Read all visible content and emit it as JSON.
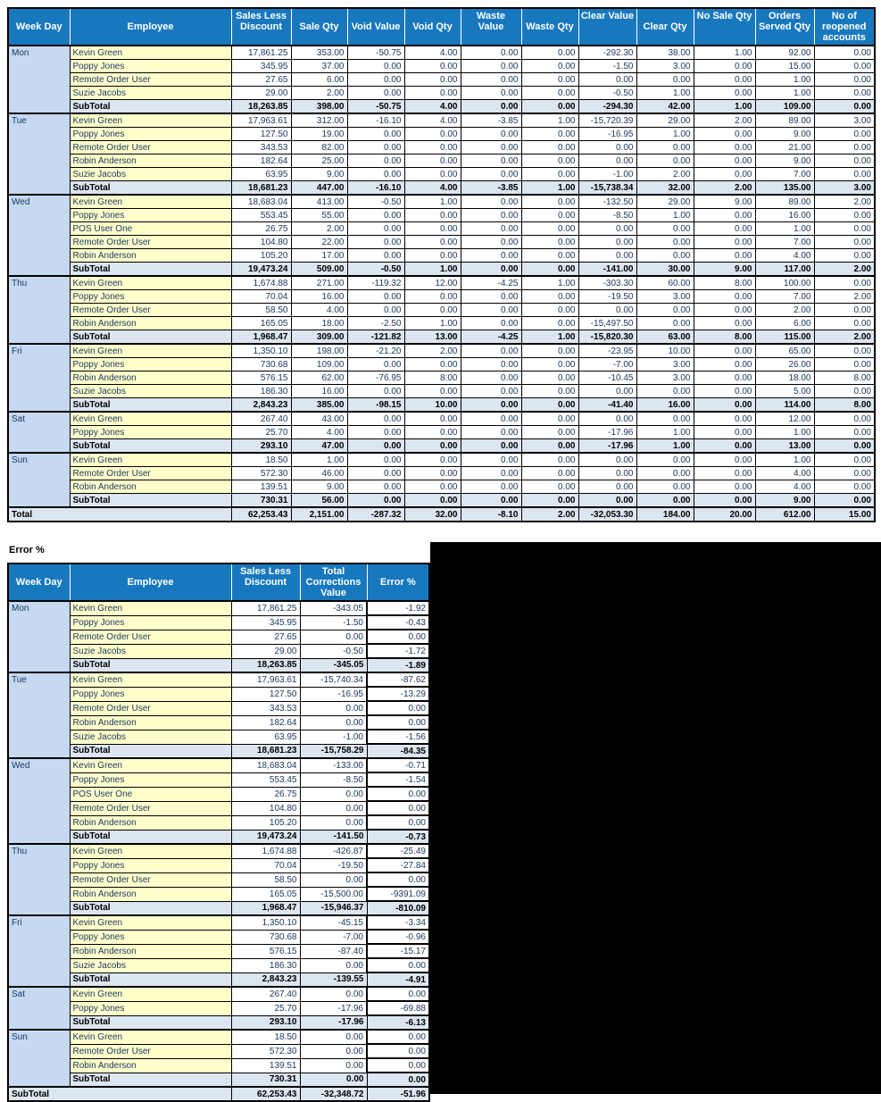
{
  "colors": {
    "header_bg": "#1878BE",
    "header_text": "#FFFFFF",
    "weekday_bg": "#C6D9F1",
    "employee_bg": "#FFFFCC",
    "subtotal_bg": "#DCE6F1",
    "data_text": "#17375D"
  },
  "report_table": {
    "columns": [
      "Week Day",
      "Employee",
      "Sales Less Discount",
      "Sale Qty",
      "Void Value",
      "Void Qty",
      "Waste Value",
      "Waste Qty",
      "Clear Value",
      "Clear Qty",
      "No Sale Qty",
      "Orders Served Qty",
      "No of reopened accounts"
    ],
    "groups": [
      {
        "day": "Mon",
        "rows": [
          [
            "Kevin Green",
            "17,861.25",
            "353.00",
            "-50.75",
            "4.00",
            "0.00",
            "0.00",
            "-292.30",
            "38.00",
            "1.00",
            "92.00",
            "0.00"
          ],
          [
            "Poppy Jones",
            "345.95",
            "37.00",
            "0.00",
            "0.00",
            "0.00",
            "0.00",
            "-1.50",
            "3.00",
            "0.00",
            "15.00",
            "0.00"
          ],
          [
            "Remote Order User",
            "27.65",
            "6.00",
            "0.00",
            "0.00",
            "0.00",
            "0.00",
            "0.00",
            "0.00",
            "0.00",
            "1.00",
            "0.00"
          ],
          [
            "Suzie Jacobs",
            "29.00",
            "2.00",
            "0.00",
            "0.00",
            "0.00",
            "0.00",
            "-0.50",
            "1.00",
            "0.00",
            "1.00",
            "0.00"
          ]
        ],
        "subtotal": [
          "SubTotal",
          "18,263.85",
          "398.00",
          "-50.75",
          "4.00",
          "0.00",
          "0.00",
          "-294.30",
          "42.00",
          "1.00",
          "109.00",
          "0.00"
        ]
      },
      {
        "day": "Tue",
        "rows": [
          [
            "Kevin Green",
            "17,963.61",
            "312.00",
            "-16.10",
            "4.00",
            "-3.85",
            "1.00",
            "-15,720.39",
            "29.00",
            "2.00",
            "89.00",
            "3.00"
          ],
          [
            "Poppy Jones",
            "127.50",
            "19.00",
            "0.00",
            "0.00",
            "0.00",
            "0.00",
            "-16.95",
            "1.00",
            "0.00",
            "9.00",
            "0.00"
          ],
          [
            "Remote Order User",
            "343.53",
            "82.00",
            "0.00",
            "0.00",
            "0.00",
            "0.00",
            "0.00",
            "0.00",
            "0.00",
            "21.00",
            "0.00"
          ],
          [
            "Robin Anderson",
            "182.64",
            "25.00",
            "0.00",
            "0.00",
            "0.00",
            "0.00",
            "0.00",
            "0.00",
            "0.00",
            "9.00",
            "0.00"
          ],
          [
            "Suzie Jacobs",
            "63.95",
            "9.00",
            "0.00",
            "0.00",
            "0.00",
            "0.00",
            "-1.00",
            "2.00",
            "0.00",
            "7.00",
            "0.00"
          ]
        ],
        "subtotal": [
          "SubTotal",
          "18,681.23",
          "447.00",
          "-16.10",
          "4.00",
          "-3.85",
          "1.00",
          "-15,738.34",
          "32.00",
          "2.00",
          "135.00",
          "3.00"
        ]
      },
      {
        "day": "Wed",
        "rows": [
          [
            "Kevin Green",
            "18,683.04",
            "413.00",
            "-0.50",
            "1.00",
            "0.00",
            "0.00",
            "-132.50",
            "29.00",
            "9.00",
            "89.00",
            "2.00"
          ],
          [
            "Poppy Jones",
            "553.45",
            "55.00",
            "0.00",
            "0.00",
            "0.00",
            "0.00",
            "-8.50",
            "1.00",
            "0.00",
            "16.00",
            "0.00"
          ],
          [
            "POS User One",
            "26.75",
            "2.00",
            "0.00",
            "0.00",
            "0.00",
            "0.00",
            "0.00",
            "0.00",
            "0.00",
            "1.00",
            "0.00"
          ],
          [
            "Remote Order User",
            "104.80",
            "22.00",
            "0.00",
            "0.00",
            "0.00",
            "0.00",
            "0.00",
            "0.00",
            "0.00",
            "7.00",
            "0.00"
          ],
          [
            "Robin Anderson",
            "105.20",
            "17.00",
            "0.00",
            "0.00",
            "0.00",
            "0.00",
            "0.00",
            "0.00",
            "0.00",
            "4.00",
            "0.00"
          ]
        ],
        "subtotal": [
          "SubTotal",
          "19,473.24",
          "509.00",
          "-0.50",
          "1.00",
          "0.00",
          "0.00",
          "-141.00",
          "30.00",
          "9.00",
          "117.00",
          "2.00"
        ]
      },
      {
        "day": "Thu",
        "rows": [
          [
            "Kevin Green",
            "1,674.88",
            "271.00",
            "-119.32",
            "12.00",
            "-4.25",
            "1.00",
            "-303.30",
            "60.00",
            "8.00",
            "100.00",
            "0.00"
          ],
          [
            "Poppy Jones",
            "70.04",
            "16.00",
            "0.00",
            "0.00",
            "0.00",
            "0.00",
            "-19.50",
            "3.00",
            "0.00",
            "7.00",
            "2.00"
          ],
          [
            "Remote Order User",
            "58.50",
            "4.00",
            "0.00",
            "0.00",
            "0.00",
            "0.00",
            "0.00",
            "0.00",
            "0.00",
            "2.00",
            "0.00"
          ],
          [
            "Robin Anderson",
            "165.05",
            "18.00",
            "-2.50",
            "1.00",
            "0.00",
            "0.00",
            "-15,497.50",
            "0.00",
            "0.00",
            "6.00",
            "0.00"
          ]
        ],
        "subtotal": [
          "SubTotal",
          "1,968.47",
          "309.00",
          "-121.82",
          "13.00",
          "-4.25",
          "1.00",
          "-15,820.30",
          "63.00",
          "8.00",
          "115.00",
          "2.00"
        ]
      },
      {
        "day": "Fri",
        "rows": [
          [
            "Kevin Green",
            "1,350.10",
            "198.00",
            "-21.20",
            "2.00",
            "0.00",
            "0.00",
            "-23.95",
            "10.00",
            "0.00",
            "65.00",
            "0.00"
          ],
          [
            "Poppy Jones",
            "730.68",
            "109.00",
            "0.00",
            "0.00",
            "0.00",
            "0.00",
            "-7.00",
            "3.00",
            "0.00",
            "26.00",
            "0.00"
          ],
          [
            "Robin Anderson",
            "576.15",
            "62.00",
            "-76.95",
            "8.00",
            "0.00",
            "0.00",
            "-10.45",
            "3.00",
            "0.00",
            "18.00",
            "8.00"
          ],
          [
            "Suzie Jacobs",
            "186.30",
            "16.00",
            "0.00",
            "0.00",
            "0.00",
            "0.00",
            "0.00",
            "0.00",
            "0.00",
            "5.00",
            "0.00"
          ]
        ],
        "subtotal": [
          "SubTotal",
          "2,843.23",
          "385.00",
          "-98.15",
          "10.00",
          "0.00",
          "0.00",
          "-41.40",
          "16.00",
          "0.00",
          "114.00",
          "8.00"
        ]
      },
      {
        "day": "Sat",
        "rows": [
          [
            "Kevin Green",
            "267.40",
            "43.00",
            "0.00",
            "0.00",
            "0.00",
            "0.00",
            "0.00",
            "0.00",
            "0.00",
            "12.00",
            "0.00"
          ],
          [
            "Poppy Jones",
            "25.70",
            "4.00",
            "0.00",
            "0.00",
            "0.00",
            "0.00",
            "-17.96",
            "1.00",
            "0.00",
            "1.00",
            "0.00"
          ]
        ],
        "subtotal": [
          "SubTotal",
          "293.10",
          "47.00",
          "0.00",
          "0.00",
          "0.00",
          "0.00",
          "-17.96",
          "1.00",
          "0.00",
          "13.00",
          "0.00"
        ]
      },
      {
        "day": "Sun",
        "rows": [
          [
            "Kevin Green",
            "18.50",
            "1.00",
            "0.00",
            "0.00",
            "0.00",
            "0.00",
            "0.00",
            "0.00",
            "0.00",
            "1.00",
            "0.00"
          ],
          [
            "Remote Order User",
            "572.30",
            "46.00",
            "0.00",
            "0.00",
            "0.00",
            "0.00",
            "0.00",
            "0.00",
            "0.00",
            "4.00",
            "0.00"
          ],
          [
            "Robin Anderson",
            "139.51",
            "9.00",
            "0.00",
            "0.00",
            "0.00",
            "0.00",
            "0.00",
            "0.00",
            "0.00",
            "4.00",
            "0.00"
          ]
        ],
        "subtotal": [
          "SubTotal",
          "730.31",
          "56.00",
          "0.00",
          "0.00",
          "0.00",
          "0.00",
          "0.00",
          "0.00",
          "0.00",
          "9.00",
          "0.00"
        ]
      }
    ],
    "total_label": "Total",
    "total": [
      "62,253.43",
      "2,151.00",
      "-287.32",
      "32.00",
      "-8.10",
      "2.00",
      "-32,053.30",
      "184.00",
      "20.00",
      "612.00",
      "15.00"
    ]
  },
  "error_table": {
    "title": "Error %",
    "columns": [
      "Week Day",
      "Employee",
      "Sales Less Discount",
      "Total Corrections Value",
      "Error %"
    ],
    "groups": [
      {
        "day": "Mon",
        "rows": [
          [
            "Kevin Green",
            "17,861.25",
            "-343.05",
            "-1.92"
          ],
          [
            "Poppy Jones",
            "345.95",
            "-1.50",
            "-0.43"
          ],
          [
            "Remote Order User",
            "27.65",
            "0.00",
            "0.00"
          ],
          [
            "Suzie Jacobs",
            "29.00",
            "-0.50",
            "-1.72"
          ]
        ],
        "subtotal": [
          "SubTotal",
          "18,263.85",
          "-345.05",
          "-1.89"
        ]
      },
      {
        "day": "Tue",
        "rows": [
          [
            "Kevin Green",
            "17,963.61",
            "-15,740.34",
            "-87.62"
          ],
          [
            "Poppy Jones",
            "127.50",
            "-16.95",
            "-13.29"
          ],
          [
            "Remote Order User",
            "343.53",
            "0.00",
            "0.00"
          ],
          [
            "Robin Anderson",
            "182.64",
            "0.00",
            "0.00"
          ],
          [
            "Suzie Jacobs",
            "63.95",
            "-1.00",
            "-1.56"
          ]
        ],
        "subtotal": [
          "SubTotal",
          "18,681.23",
          "-15,758.29",
          "-84.35"
        ]
      },
      {
        "day": "Wed",
        "rows": [
          [
            "Kevin Green",
            "18,683.04",
            "-133.00",
            "-0.71"
          ],
          [
            "Poppy Jones",
            "553.45",
            "-8.50",
            "-1.54"
          ],
          [
            "POS User One",
            "26.75",
            "0.00",
            "0.00"
          ],
          [
            "Remote Order User",
            "104.80",
            "0.00",
            "0.00"
          ],
          [
            "Robin Anderson",
            "105.20",
            "0.00",
            "0.00"
          ]
        ],
        "subtotal": [
          "SubTotal",
          "19,473.24",
          "-141.50",
          "-0.73"
        ]
      },
      {
        "day": "Thu",
        "rows": [
          [
            "Kevin Green",
            "1,674.88",
            "-426.87",
            "-25.49"
          ],
          [
            "Poppy Jones",
            "70.04",
            "-19.50",
            "-27.84"
          ],
          [
            "Remote Order User",
            "58.50",
            "0.00",
            "0.00"
          ],
          [
            "Robin Anderson",
            "165.05",
            "-15,500.00",
            "-9391.09"
          ]
        ],
        "subtotal": [
          "SubTotal",
          "1,968.47",
          "-15,946.37",
          "-810.09"
        ]
      },
      {
        "day": "Fri",
        "rows": [
          [
            "Kevin Green",
            "1,350.10",
            "-45.15",
            "-3.34"
          ],
          [
            "Poppy Jones",
            "730.68",
            "-7.00",
            "-0.96"
          ],
          [
            "Robin Anderson",
            "576.15",
            "-87.40",
            "-15.17"
          ],
          [
            "Suzie Jacobs",
            "186.30",
            "0.00",
            "0.00"
          ]
        ],
        "subtotal": [
          "SubTotal",
          "2,843.23",
          "-139.55",
          "-4.91"
        ]
      },
      {
        "day": "Sat",
        "rows": [
          [
            "Kevin Green",
            "267.40",
            "0.00",
            "0.00"
          ],
          [
            "Poppy Jones",
            "25.70",
            "-17.96",
            "-69.88"
          ]
        ],
        "subtotal": [
          "SubTotal",
          "293.10",
          "-17.96",
          "-6.13"
        ]
      },
      {
        "day": "Sun",
        "rows": [
          [
            "Kevin Green",
            "18.50",
            "0.00",
            "0.00"
          ],
          [
            "Remote Order User",
            "572.30",
            "0.00",
            "0.00"
          ],
          [
            "Robin Anderson",
            "139.51",
            "0.00",
            "0.00"
          ]
        ],
        "subtotal": [
          "SubTotal",
          "730.31",
          "0.00",
          "0.00"
        ]
      }
    ],
    "total_label": "SubTotal",
    "total": [
      "62,253.43",
      "-32,348.72",
      "-51.96"
    ]
  }
}
